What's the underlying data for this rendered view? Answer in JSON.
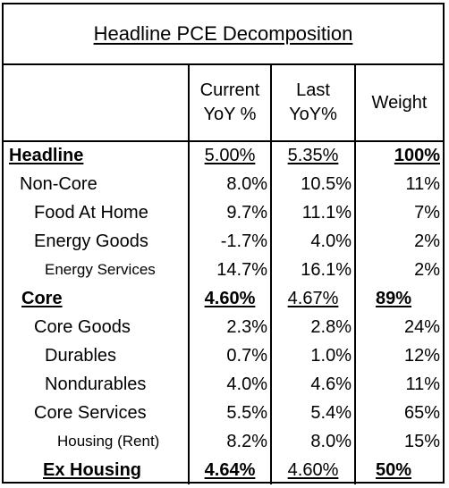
{
  "title": "Headline PCE Decomposition",
  "headers": {
    "current_line1": "Current",
    "current_line2": "YoY %",
    "last_line1": "Last",
    "last_line2": "YoY%",
    "weight": "Weight"
  },
  "rows": [
    {
      "label": "Headline",
      "current": "5.00%",
      "last": "5.35%",
      "weight": "100%"
    },
    {
      "label": "Non-Core",
      "current": "8.0%",
      "last": "10.5%",
      "weight": "11%"
    },
    {
      "label": "Food At Home",
      "current": "9.7%",
      "last": "11.1%",
      "weight": "7%"
    },
    {
      "label": "Energy Goods",
      "current": "-1.7%",
      "last": "4.0%",
      "weight": "2%"
    },
    {
      "label": "Energy Services",
      "current": "14.7%",
      "last": "16.1%",
      "weight": "2%"
    },
    {
      "label": "Core",
      "current": "4.60%",
      "last": "4.67%",
      "weight": "89%"
    },
    {
      "label": "Core Goods",
      "current": "2.3%",
      "last": "2.8%",
      "weight": "24%"
    },
    {
      "label": "Durables",
      "current": "0.7%",
      "last": "1.0%",
      "weight": "12%"
    },
    {
      "label": "Nondurables",
      "current": "4.0%",
      "last": "4.6%",
      "weight": "11%"
    },
    {
      "label": "Core Services",
      "current": "5.5%",
      "last": "5.4%",
      "weight": "65%"
    },
    {
      "label": "Housing (Rent)",
      "current": "8.2%",
      "last": "8.0%",
      "weight": "15%"
    },
    {
      "label": "Ex Housing",
      "current": "4.64%",
      "last": "4.60%",
      "weight": "50%"
    }
  ]
}
